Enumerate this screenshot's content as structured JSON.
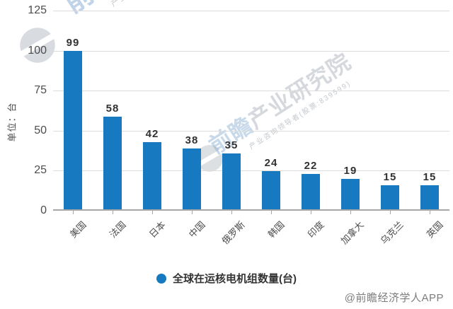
{
  "chart_data": {
    "type": "bar",
    "categories": [
      "美国",
      "法国",
      "日本",
      "中国",
      "俄罗斯",
      "韩国",
      "印度",
      "加拿大",
      "乌克兰",
      "英国"
    ],
    "values": [
      99,
      58,
      42,
      38,
      35,
      24,
      22,
      19,
      15,
      15
    ],
    "series_name": "全球在运核电机组数量(台)",
    "ylabel": "单位：台",
    "ylim": [
      0,
      125
    ],
    "yticks": [
      0,
      25,
      50,
      75,
      100,
      125
    ],
    "bar_color": "#1779c0",
    "grid": true,
    "legend_position": "bottom-center"
  },
  "legend": {
    "label": "全球在运核电机组数量(台)",
    "dot_color": "#1779c0"
  },
  "footer": {
    "credit": "@前瞻经济学人APP"
  },
  "watermark": {
    "brand_prefix": "前瞻",
    "brand_rest": "产业研究院",
    "subtext": "产业咨询领导者(股票:839599)"
  }
}
